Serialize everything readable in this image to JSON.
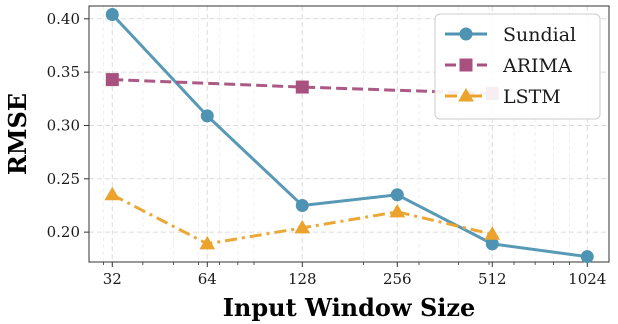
{
  "chart_data": {
    "type": "line",
    "xlabel": "Input Window Size",
    "ylabel": "RMSE",
    "x_scale": "log2",
    "x_ticks": [
      32,
      64,
      128,
      256,
      512,
      1024
    ],
    "x_tick_labels": [
      "32",
      "64",
      "128",
      "256",
      "512",
      "1024"
    ],
    "xlim": [
      27,
      1200
    ],
    "ylim": [
      0.172,
      0.412
    ],
    "y_ticks": [
      0.2,
      0.25,
      0.3,
      0.35,
      0.4
    ],
    "y_tick_labels": [
      "0.20",
      "0.25",
      "0.30",
      "0.35",
      "0.40"
    ],
    "grid": true,
    "legend_position": "top-right",
    "series": [
      {
        "name": "Sundial",
        "color": "#4f93b2",
        "marker": "circle",
        "line_style": "solid",
        "x": [
          32,
          64,
          128,
          256,
          512,
          1024
        ],
        "y": [
          0.404,
          0.309,
          0.225,
          0.235,
          0.189,
          0.177
        ]
      },
      {
        "name": "ARIMA",
        "color": "#a8507e",
        "marker": "square",
        "line_style": "dashed",
        "x": [
          32,
          128,
          512
        ],
        "y": [
          0.343,
          0.336,
          0.33
        ]
      },
      {
        "name": "LSTM",
        "color": "#eba32c",
        "marker": "triangle",
        "line_style": "dashdot",
        "x": [
          32,
          64,
          128,
          256,
          512
        ],
        "y": [
          0.235,
          0.189,
          0.204,
          0.219,
          0.198
        ]
      }
    ]
  }
}
